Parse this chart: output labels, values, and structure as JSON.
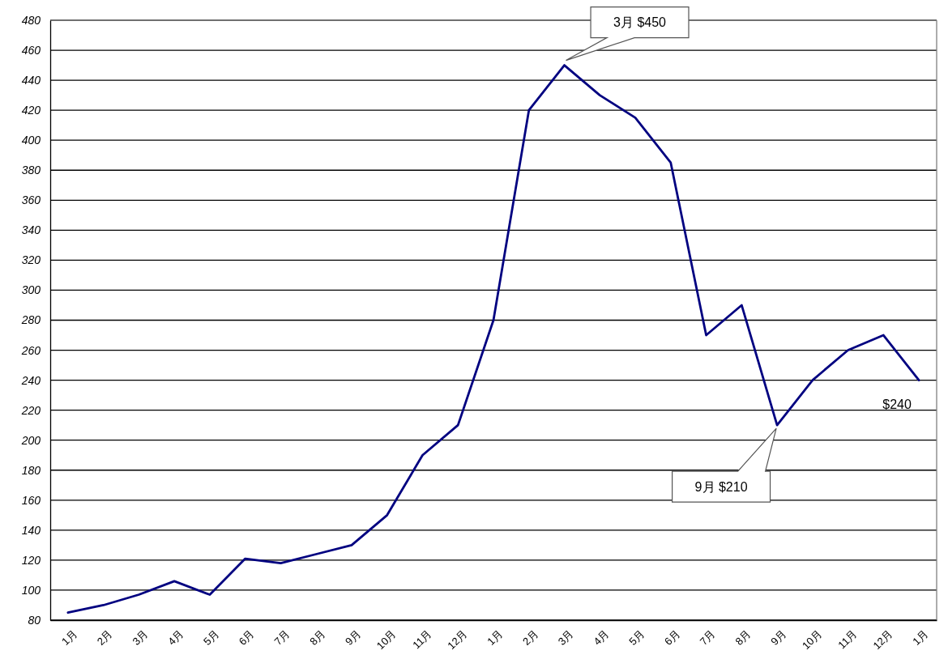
{
  "chart_data": {
    "type": "line",
    "categories": [
      "1月",
      "2月",
      "3月",
      "4月",
      "5月",
      "6月",
      "7月",
      "8月",
      "9月",
      "10月",
      "11月",
      "12月",
      "1月",
      "2月",
      "3月",
      "4月",
      "5月",
      "6月",
      "7月",
      "8月",
      "9月",
      "10月",
      "11月",
      "12月",
      "1月"
    ],
    "series": [
      {
        "color": "#000080",
        "values": [
          85,
          90,
          97,
          106,
          97,
          121,
          118,
          124,
          130,
          150,
          190,
          210,
          280,
          420,
          450,
          430,
          415,
          385,
          270,
          290,
          210,
          240,
          260,
          270,
          240
        ]
      }
    ],
    "ylim": [
      80,
      480
    ],
    "yticks": [
      80,
      100,
      120,
      140,
      160,
      180,
      200,
      220,
      240,
      260,
      280,
      300,
      320,
      340,
      360,
      380,
      400,
      420,
      440,
      460,
      480
    ],
    "grid": "y",
    "annotations": [
      "3月 $450",
      "9月 $210",
      "$240"
    ]
  }
}
